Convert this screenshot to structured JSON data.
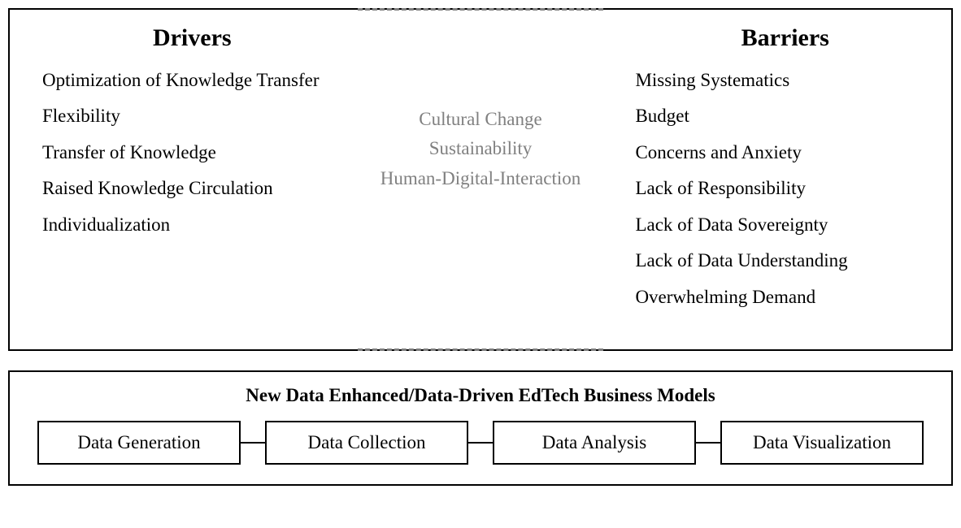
{
  "diagram": {
    "type": "infographic",
    "background_color": "#ffffff",
    "text_color": "#000000",
    "muted_text_color": "#808080",
    "border_color": "#000000",
    "dashed_color": "#808080",
    "font_family": "Times New Roman",
    "title_fontsize": 30,
    "body_fontsize": 23
  },
  "top": {
    "drivers": {
      "title": "Drivers",
      "items": [
        "Optimization of Knowledge Transfer",
        "Flexibility",
        "Transfer of Knowledge",
        "Raised Knowledge Circulation",
        "Individualization"
      ]
    },
    "middle_factors": [
      "Cultural Change",
      "Sustainability",
      "Human-Digital-Interaction"
    ],
    "barriers": {
      "title": "Barriers",
      "items": [
        "Missing Systematics",
        "Budget",
        "Concerns and Anxiety",
        "Lack of Responsibility",
        "Lack of Data Sovereignty",
        "Lack of Data Understanding",
        "Overwhelming Demand"
      ]
    }
  },
  "bottom": {
    "title": "New Data Enhanced/Data-Driven EdTech Business Models",
    "stages": [
      "Data Generation",
      "Data Collection",
      "Data Analysis",
      "Data Visualization"
    ]
  }
}
